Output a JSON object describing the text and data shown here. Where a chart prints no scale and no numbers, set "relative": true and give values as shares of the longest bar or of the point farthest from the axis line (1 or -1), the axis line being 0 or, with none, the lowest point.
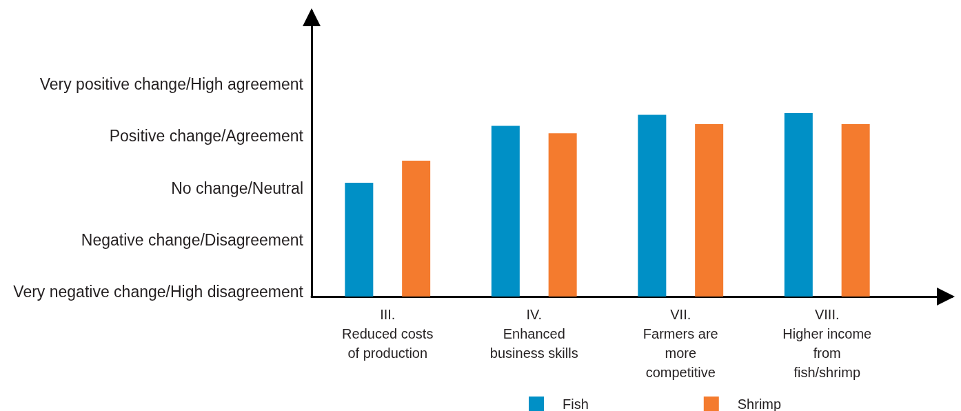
{
  "chart_data": {
    "type": "bar",
    "relative": true,
    "categories": [
      "III.\nReduced costs\nof production",
      "IV.\nEnhanced\nbusiness skills",
      "VII.\nFarmers are\nmore\ncompetitive",
      "VIII.\nHigher income\nfrom\nfish/shrimp"
    ],
    "series": [
      {
        "name": "Fish",
        "color": "#0090c6",
        "values": [
          0.62,
          0.93,
          0.99,
          1
        ]
      },
      {
        "name": "Shrimp",
        "color": "#f47b2e",
        "values": [
          0.74,
          0.89,
          0.94,
          0.94
        ]
      }
    ],
    "annotations": [
      "Very positive change/High agreement",
      "Positive change/Agreement",
      "No change/Neutral",
      "Negative change/Disagreement",
      "Very negative change/High disagreement"
    ],
    "legend": "bottom"
  }
}
